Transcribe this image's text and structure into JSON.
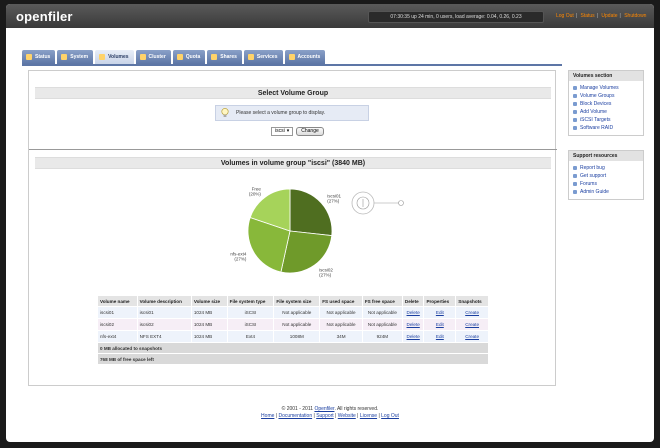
{
  "app": {
    "logo": "openfiler",
    "sysinfo": "07:30:35 up 24 min, 0 users, load average: 0.04, 0.26, 0.23",
    "toplinks": [
      "Log Out",
      "Status",
      "Update",
      "Shutdown"
    ]
  },
  "tabs": [
    {
      "label": "Status"
    },
    {
      "label": "System"
    },
    {
      "label": "Volumes"
    },
    {
      "label": "Cluster"
    },
    {
      "label": "Quota"
    },
    {
      "label": "Shares"
    },
    {
      "label": "Services"
    },
    {
      "label": "Accounts"
    }
  ],
  "active_tab": "Volumes",
  "select_group": {
    "heading": "Select Volume Group",
    "notice": "Please select a volume group to display.",
    "selected": "iscsi",
    "change_button": "Change"
  },
  "volumes_group": {
    "heading": "Volumes in volume group \"iscsi\" (3840 MB)"
  },
  "chart_data": {
    "type": "pie",
    "slices": [
      {
        "label": "iscsi01",
        "pct_label": "(27%)",
        "value": 27,
        "color": "#4f6e20"
      },
      {
        "label": "iscsi02",
        "pct_label": "(27%)",
        "value": 27,
        "color": "#6f9a2a"
      },
      {
        "label": "nfs-ext4",
        "pct_label": "(27%)",
        "value": 27,
        "color": "#88b83a"
      },
      {
        "label": "Free",
        "pct_label": "(20%)",
        "value": 20,
        "color": "#a6d35a"
      }
    ]
  },
  "table": {
    "headers": [
      "Volume name",
      "Volume description",
      "Volume size",
      "File system type",
      "File system size",
      "FS used space",
      "FS free space",
      "Delete",
      "Properties",
      "Snapshots"
    ],
    "rows": [
      {
        "name": "iscsi01",
        "desc": "iscsi01",
        "size": "1024 MB",
        "fstype": "iSCSI",
        "fssize": "Not applicable",
        "used": "Not applicable",
        "free": "Not applicable",
        "delete": "Delete",
        "props": "Edit",
        "snap": "Create"
      },
      {
        "name": "iscsi02",
        "desc": "iscsi02",
        "size": "1024 MB",
        "fstype": "iSCSI",
        "fssize": "Not applicable",
        "used": "Not applicable",
        "free": "Not applicable",
        "delete": "Delete",
        "props": "Edit",
        "snap": "Create"
      },
      {
        "name": "nfs-ext4",
        "desc": "NFS EXT4",
        "size": "1024 MB",
        "fstype": "Ext4",
        "fssize": "1008M",
        "used": "34M",
        "free": "924M",
        "delete": "Delete",
        "props": "Edit",
        "snap": "Create"
      }
    ],
    "summary1": "0 MB allocated to snapshots",
    "summary2": "768 MB of free space left"
  },
  "sidebar": {
    "volumes_section": {
      "title": "Volumes section",
      "items": [
        "Manage Volumes",
        "Volume Groups",
        "Block Devices",
        "Add Volume",
        "iSCSI Targets",
        "Software RAID"
      ]
    },
    "support_section": {
      "title": "Support resources",
      "items": [
        "Report bug",
        "Get support",
        "Forums",
        "Admin Guide"
      ]
    }
  },
  "footer": {
    "copyright": "© 2001 - 2011",
    "brand_link": "Openfiler",
    "rights": ". All rights reserved.",
    "links": [
      "Home",
      "Documentation",
      "Support",
      "Website",
      "License",
      "Log Out"
    ]
  }
}
